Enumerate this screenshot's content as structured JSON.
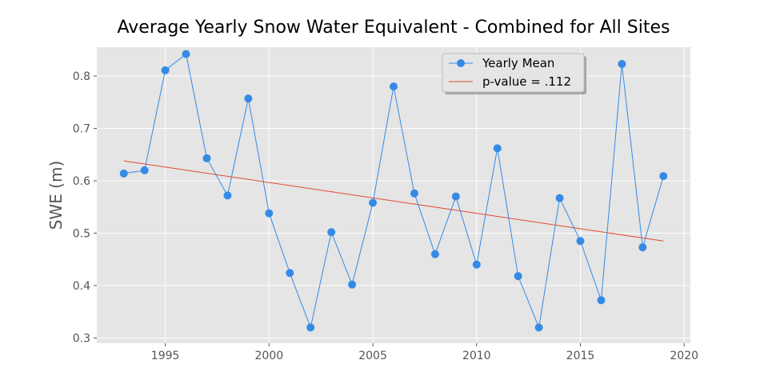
{
  "colors": {
    "series": "#348ae6",
    "trend": "#e24a33",
    "plot_bg": "#e5e5e5",
    "grid": "#ffffff"
  },
  "chart_data": {
    "type": "line",
    "title": "Average Yearly Snow Water Equivalent - Combined for All Sites",
    "xlabel": "",
    "ylabel": "SWE (m)",
    "xlim": [
      1991.7,
      2020.3
    ],
    "ylim": [
      0.29,
      0.855
    ],
    "xticks": [
      1995,
      2000,
      2005,
      2010,
      2015,
      2020
    ],
    "yticks": [
      0.3,
      0.4,
      0.5,
      0.6,
      0.7,
      0.8
    ],
    "xtick_labels": [
      "1995",
      "2000",
      "2005",
      "2010",
      "2015",
      "2020"
    ],
    "ytick_labels": [
      "0.3",
      "0.4",
      "0.5",
      "0.6",
      "0.7",
      "0.8"
    ],
    "grid": true,
    "legend_position": "top-right",
    "series": [
      {
        "name": "Yearly Mean",
        "kind": "line-marker",
        "x": [
          1993,
          1994,
          1995,
          1996,
          1997,
          1998,
          1999,
          2000,
          2001,
          2002,
          2003,
          2004,
          2005,
          2006,
          2007,
          2008,
          2009,
          2010,
          2011,
          2012,
          2013,
          2014,
          2015,
          2016,
          2017,
          2018,
          2019
        ],
        "values": [
          0.614,
          0.62,
          0.811,
          0.842,
          0.643,
          0.572,
          0.757,
          0.538,
          0.424,
          0.32,
          0.502,
          0.402,
          0.558,
          0.78,
          0.576,
          0.46,
          0.57,
          0.44,
          0.662,
          0.418,
          0.32,
          0.567,
          0.485,
          0.372,
          0.823,
          0.473,
          0.609
        ]
      },
      {
        "name": "p-value = .112",
        "kind": "trend",
        "x": [
          1993,
          2019
        ],
        "values": [
          0.638,
          0.485
        ]
      }
    ]
  }
}
